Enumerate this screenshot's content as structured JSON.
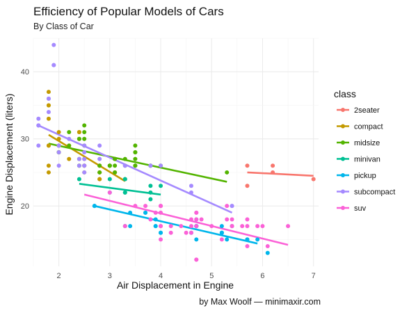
{
  "chart_data": {
    "type": "scatter",
    "title": "Efficiency of Popular Models of Cars",
    "subtitle": "By Class of Car",
    "xlabel": "Air Displacement in Engine",
    "ylabel": "Engine Displacement (liters)",
    "caption": "by Max Woolf — minimaxir.com",
    "xlim": [
      1.5,
      7.1
    ],
    "ylim": [
      11,
      45
    ],
    "x_ticks": [
      2,
      3,
      4,
      5,
      6,
      7
    ],
    "y_ticks": [
      20,
      30,
      40
    ],
    "grid": true,
    "legend": {
      "title": "class",
      "position": "right"
    },
    "series": [
      {
        "name": "2seater",
        "color": "#F8766D",
        "points": [
          [
            5.7,
            26
          ],
          [
            5.7,
            23
          ],
          [
            6.2,
            26
          ],
          [
            6.2,
            25
          ],
          [
            7.0,
            24
          ]
        ],
        "trend": [
          [
            5.7,
            25.0
          ],
          [
            7.0,
            24.5
          ]
        ]
      },
      {
        "name": "compact",
        "color": "#C49A00",
        "points": [
          [
            1.8,
            29
          ],
          [
            1.8,
            29
          ],
          [
            2.0,
            31
          ],
          [
            2.0,
            30
          ],
          [
            2.8,
            26
          ],
          [
            2.8,
            26
          ],
          [
            3.1,
            27
          ],
          [
            1.8,
            26
          ],
          [
            1.8,
            25
          ],
          [
            2.0,
            28
          ],
          [
            2.0,
            28
          ],
          [
            2.8,
            25
          ],
          [
            2.8,
            25
          ],
          [
            3.1,
            25
          ],
          [
            3.1,
            25
          ],
          [
            2.4,
            31
          ],
          [
            2.4,
            31
          ],
          [
            2.5,
            27
          ],
          [
            2.5,
            25
          ],
          [
            2.2,
            27
          ],
          [
            2.2,
            29
          ],
          [
            2.5,
            26
          ],
          [
            2.5,
            26
          ],
          [
            2.5,
            26
          ],
          [
            1.8,
            33
          ],
          [
            1.8,
            35
          ],
          [
            1.8,
            37
          ],
          [
            1.8,
            35
          ],
          [
            2.0,
            29
          ],
          [
            2.8,
            24
          ],
          [
            2.0,
            29
          ],
          [
            2.8,
            24
          ],
          [
            3.3,
            24
          ]
        ],
        "trend": [
          [
            1.8,
            30.6
          ],
          [
            3.3,
            23.7
          ]
        ]
      },
      {
        "name": "midsize",
        "color": "#53B400",
        "points": [
          [
            2.4,
            30
          ],
          [
            2.4,
            30
          ],
          [
            2.4,
            27
          ],
          [
            2.5,
            30
          ],
          [
            2.5,
            32
          ],
          [
            2.5,
            31
          ],
          [
            2.5,
            29
          ],
          [
            3.0,
            26
          ],
          [
            3.0,
            26
          ],
          [
            3.5,
            26
          ],
          [
            3.5,
            29
          ],
          [
            3.3,
            26
          ],
          [
            3.8,
            26
          ],
          [
            3.8,
            26
          ],
          [
            4.0,
            26
          ],
          [
            5.3,
            25
          ],
          [
            3.5,
            28
          ],
          [
            3.5,
            27
          ],
          [
            3.5,
            26
          ],
          [
            3.8,
            26
          ],
          [
            3.0,
            26
          ],
          [
            3.1,
            27
          ],
          [
            3.1,
            26
          ],
          [
            3.3,
            27
          ],
          [
            2.0,
            29
          ],
          [
            2.0,
            28
          ],
          [
            2.0,
            28
          ],
          [
            2.8,
            26
          ],
          [
            2.8,
            25
          ],
          [
            3.1,
            27
          ],
          [
            3.1,
            25
          ],
          [
            2.2,
            31
          ],
          [
            2.2,
            29
          ],
          [
            2.4,
            26
          ],
          [
            2.4,
            26
          ],
          [
            3.0,
            26
          ],
          [
            3.5,
            28
          ]
        ],
        "trend": [
          [
            1.8,
            29.3
          ],
          [
            5.3,
            23.6
          ]
        ]
      },
      {
        "name": "minivan",
        "color": "#00C094",
        "points": [
          [
            2.4,
            24
          ],
          [
            3.0,
            24
          ],
          [
            3.3,
            22
          ],
          [
            3.3,
            22
          ],
          [
            3.3,
            24
          ],
          [
            3.3,
            24
          ],
          [
            3.3,
            17
          ],
          [
            3.8,
            22
          ],
          [
            3.8,
            21
          ],
          [
            3.8,
            23
          ],
          [
            4.0,
            23
          ]
        ],
        "trend": [
          [
            2.4,
            23.3
          ],
          [
            4.0,
            21.7
          ]
        ]
      },
      {
        "name": "pickup",
        "color": "#00B6EB",
        "points": [
          [
            2.7,
            20
          ],
          [
            2.7,
            20
          ],
          [
            2.7,
            20
          ],
          [
            3.0,
            22
          ],
          [
            3.4,
            19
          ],
          [
            3.4,
            17
          ],
          [
            3.7,
            19
          ],
          [
            3.7,
            19
          ],
          [
            3.9,
            17
          ],
          [
            3.9,
            17
          ],
          [
            4.7,
            17
          ],
          [
            4.7,
            17
          ],
          [
            4.7,
            17
          ],
          [
            4.7,
            17
          ],
          [
            4.7,
            15
          ],
          [
            5.2,
            17
          ],
          [
            5.2,
            16
          ],
          [
            5.7,
            15
          ],
          [
            5.9,
            15
          ],
          [
            4.7,
            18
          ],
          [
            5.2,
            16
          ],
          [
            5.3,
            15
          ],
          [
            5.7,
            15
          ],
          [
            6.1,
            13
          ],
          [
            4.0,
            16
          ],
          [
            4.0,
            16
          ],
          [
            4.6,
            16
          ],
          [
            5.4,
            17
          ],
          [
            3.9,
            18
          ],
          [
            4.7,
            17
          ],
          [
            5.2,
            16
          ]
        ],
        "trend": [
          [
            2.7,
            20.0
          ],
          [
            5.9,
            14.4
          ]
        ]
      },
      {
        "name": "subcompact",
        "color": "#A58AFF",
        "points": [
          [
            1.6,
            33
          ],
          [
            1.6,
            32
          ],
          [
            1.6,
            32
          ],
          [
            1.6,
            29
          ],
          [
            1.6,
            32
          ],
          [
            1.8,
            34
          ],
          [
            1.8,
            36
          ],
          [
            1.8,
            36
          ],
          [
            2.0,
            29
          ],
          [
            2.4,
            26
          ],
          [
            2.4,
            27
          ],
          [
            2.5,
            26
          ],
          [
            2.5,
            25
          ],
          [
            2.5,
            27
          ],
          [
            2.5,
            29
          ],
          [
            2.5,
            28
          ],
          [
            3.3,
            26
          ],
          [
            3.8,
            26
          ],
          [
            4.6,
            23
          ],
          [
            5.4,
            20
          ],
          [
            1.9,
            44
          ],
          [
            1.9,
            41
          ],
          [
            2.0,
            29
          ],
          [
            2.0,
            26
          ],
          [
            2.0,
            28
          ],
          [
            2.8,
            29
          ],
          [
            3.3,
            26
          ],
          [
            4.0,
            26
          ],
          [
            2.5,
            26
          ],
          [
            2.2,
            30
          ],
          [
            2.8,
            27
          ],
          [
            3.8,
            26
          ],
          [
            4.6,
            22
          ],
          [
            5.4,
            20
          ],
          [
            1.9,
            41
          ]
        ],
        "trend": [
          [
            1.6,
            32.0
          ],
          [
            5.4,
            19.0
          ]
        ]
      },
      {
        "name": "suv",
        "color": "#FB61D7",
        "points": [
          [
            5.7,
            17
          ],
          [
            5.7,
            18
          ],
          [
            6.5,
            17
          ],
          [
            6.1,
            14
          ],
          [
            4.7,
            12
          ],
          [
            4.7,
            12
          ],
          [
            5.2,
            15
          ],
          [
            5.7,
            14
          ],
          [
            5.9,
            17
          ],
          [
            4.7,
            17
          ],
          [
            4.7,
            19
          ],
          [
            4.7,
            19
          ],
          [
            4.2,
            17
          ],
          [
            4.4,
            17
          ],
          [
            4.6,
            16
          ],
          [
            5.4,
            18
          ],
          [
            5.4,
            17
          ],
          [
            4.0,
            20
          ],
          [
            4.0,
            20
          ],
          [
            4.0,
            17
          ],
          [
            4.6,
            18
          ],
          [
            5.0,
            17
          ],
          [
            4.2,
            16
          ],
          [
            4.0,
            15
          ],
          [
            4.0,
            17
          ],
          [
            4.6,
            17
          ],
          [
            5.4,
            17
          ],
          [
            3.3,
            17
          ],
          [
            3.0,
            22
          ],
          [
            3.7,
            20
          ],
          [
            3.9,
            19
          ],
          [
            4.0,
            20
          ],
          [
            5.3,
            20
          ],
          [
            4.7,
            18
          ],
          [
            5.6,
            17
          ],
          [
            3.5,
            20
          ],
          [
            4.5,
            16
          ],
          [
            3.8,
            18
          ],
          [
            4.0,
            19
          ],
          [
            4.8,
            18
          ],
          [
            5.3,
            18
          ],
          [
            6.0,
            17
          ]
        ],
        "trend": [
          [
            2.5,
            21.7
          ],
          [
            6.5,
            14.2
          ]
        ]
      }
    ]
  }
}
